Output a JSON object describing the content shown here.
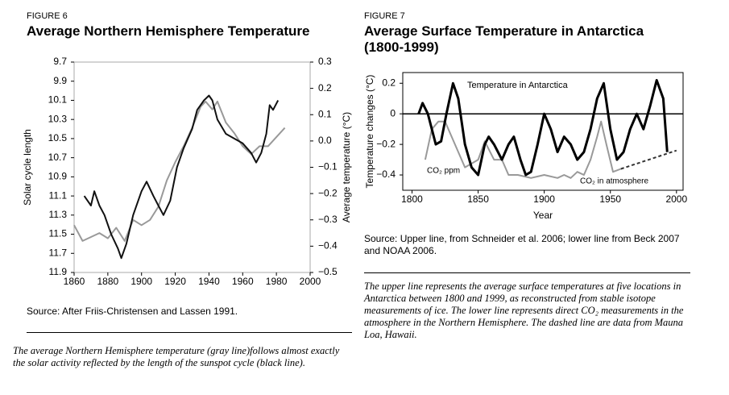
{
  "chart_data": [
    {
      "type": "line",
      "figure": "FIGURE 6",
      "title": "Average Northern Hemisphere Temperature",
      "ylabel": "Solar cycle length",
      "y2label": "Average temperature (°C)",
      "xlim": [
        1860,
        2000
      ],
      "xticks": [
        1860,
        1880,
        1900,
        1920,
        1940,
        1960,
        1980,
        2000
      ],
      "ylim": [
        11.9,
        9.7
      ],
      "yticks": [
        9.7,
        9.9,
        10.1,
        10.3,
        10.5,
        10.7,
        10.9,
        11.1,
        11.3,
        11.5,
        11.7,
        11.9
      ],
      "y2lim": [
        -0.5,
        0.3
      ],
      "y2ticks": [
        0.3,
        0.2,
        0.1,
        {
          "value": 0,
          "label": "0.0"
        },
        {
          "value": -0.1,
          "label": "−0.1"
        },
        {
          "value": -0.2,
          "label": "−0.2"
        },
        {
          "value": -0.3,
          "label": "−0.3"
        },
        {
          "value": -0.4,
          "label": "−0.4"
        },
        {
          "value": -0.5,
          "label": "−0.5"
        }
      ],
      "series": [
        {
          "color": "#999999",
          "axis": "y2",
          "x": [
            1860,
            1865,
            1875,
            1880,
            1885,
            1890,
            1895,
            1900,
            1905,
            1910,
            1915,
            1920,
            1925,
            1930,
            1935,
            1938,
            1942,
            1945,
            1950,
            1955,
            1960,
            1965,
            1970,
            1975,
            1985
          ],
          "values": [
            -0.32,
            -0.38,
            -0.35,
            -0.37,
            -0.33,
            -0.38,
            -0.3,
            -0.32,
            -0.3,
            -0.25,
            -0.15,
            -0.08,
            -0.02,
            0.05,
            0.13,
            0.15,
            0.12,
            0.15,
            0.07,
            0.03,
            -0.02,
            -0.05,
            -0.02,
            -0.02,
            0.05
          ]
        },
        {
          "color": "#111111",
          "x": [
            1866,
            1870,
            1872,
            1875,
            1878,
            1882,
            1886,
            1888,
            1891,
            1895,
            1900,
            1903,
            1907,
            1910,
            1913,
            1917,
            1921,
            1925,
            1930,
            1933,
            1937,
            1940,
            1942,
            1945,
            1950,
            1955,
            1960,
            1965,
            1968,
            1971,
            1974,
            1976,
            1978,
            1981
          ],
          "values": [
            11.1,
            11.2,
            11.05,
            11.2,
            11.3,
            11.5,
            11.65,
            11.75,
            11.6,
            11.3,
            11.05,
            10.95,
            11.1,
            11.2,
            11.3,
            11.15,
            10.8,
            10.6,
            10.4,
            10.2,
            10.1,
            10.05,
            10.1,
            10.3,
            10.45,
            10.5,
            10.55,
            10.65,
            10.75,
            10.65,
            10.45,
            10.15,
            10.2,
            10.1
          ]
        }
      ]
    },
    {
      "type": "line",
      "figure": "FIGURE 7",
      "title": "Average Surface Temperature in Antarctica",
      "subtitle": "(1800-1999)",
      "ylabel": "Temperature changes (°C)",
      "xlabel": "Year",
      "zero_line": true,
      "xlim": [
        1793,
        2005
      ],
      "xticks": [
        1800,
        1850,
        1900,
        1950,
        2000
      ],
      "ylim": [
        -0.5,
        0.27
      ],
      "yticks": [
        0.2,
        0,
        {
          "value": -0.2,
          "label": "−0.2"
        },
        {
          "value": -0.4,
          "label": "−0.4"
        }
      ],
      "annotations": [
        "Temperature in Antarctica",
        "CO₂ ppm",
        "CO₂ in atmosphere"
      ],
      "series": [
        {
          "color": "#999999",
          "x": [
            1810,
            1815,
            1820,
            1825,
            1830,
            1840,
            1850,
            1855,
            1862,
            1868,
            1873,
            1880,
            1890,
            1900,
            1910,
            1915,
            1920,
            1925,
            1930,
            1935,
            1940,
            1943,
            1947,
            1952,
            1958
          ],
          "values": [
            -0.3,
            -0.1,
            -0.05,
            -0.05,
            -0.15,
            -0.35,
            -0.3,
            -0.18,
            -0.3,
            -0.3,
            -0.4,
            -0.4,
            -0.42,
            -0.4,
            -0.42,
            -0.4,
            -0.42,
            -0.38,
            -0.4,
            -0.3,
            -0.15,
            -0.05,
            -0.2,
            -0.38,
            -0.36
          ]
        },
        {
          "color": "#333333",
          "dash": true,
          "x": [
            1958,
            2000
          ],
          "values": [
            -0.36,
            -0.24
          ]
        },
        {
          "color": "#000000",
          "width": 3,
          "x": [
            1805,
            1808,
            1812,
            1818,
            1822,
            1826,
            1831,
            1835,
            1840,
            1845,
            1850,
            1855,
            1858,
            1862,
            1868,
            1873,
            1877,
            1882,
            1886,
            1890,
            1895,
            1900,
            1905,
            1910,
            1915,
            1920,
            1925,
            1930,
            1935,
            1940,
            1945,
            1950,
            1955,
            1960,
            1965,
            1970,
            1975,
            1980,
            1985,
            1990,
            1993
          ],
          "values": [
            0.0,
            0.07,
            0.0,
            -0.2,
            -0.18,
            0.0,
            0.2,
            0.1,
            -0.2,
            -0.35,
            -0.4,
            -0.2,
            -0.15,
            -0.2,
            -0.3,
            -0.2,
            -0.15,
            -0.3,
            -0.4,
            -0.38,
            -0.2,
            0.0,
            -0.1,
            -0.25,
            -0.15,
            -0.2,
            -0.3,
            -0.25,
            -0.1,
            0.1,
            0.2,
            -0.1,
            -0.3,
            -0.25,
            -0.1,
            0.0,
            -0.1,
            0.05,
            0.22,
            0.1,
            -0.25
          ]
        }
      ]
    }
  ],
  "sources": [
    "Source: After Friis-Christensen and Lassen 1991.",
    "Source: Upper line, from Schneider et al. 2006; lower line from Beck 2007 and NOAA 2006."
  ],
  "captions": [
    "The average Northern Hemisphere temperature (gray line)follows almost exactly the solar activity reflected by the length of the sunspot cycle (black line).",
    "The upper line represents the average surface temperatures at five locations in Antarctica between 1800 and 1999, as reconstructed from stable isotope measurements of ice. The lower line represents direct CO₂ measurements in the atmosphere in the Northern Hemisphere. The dashed line are data from Mauna Loa, Hawaii."
  ]
}
